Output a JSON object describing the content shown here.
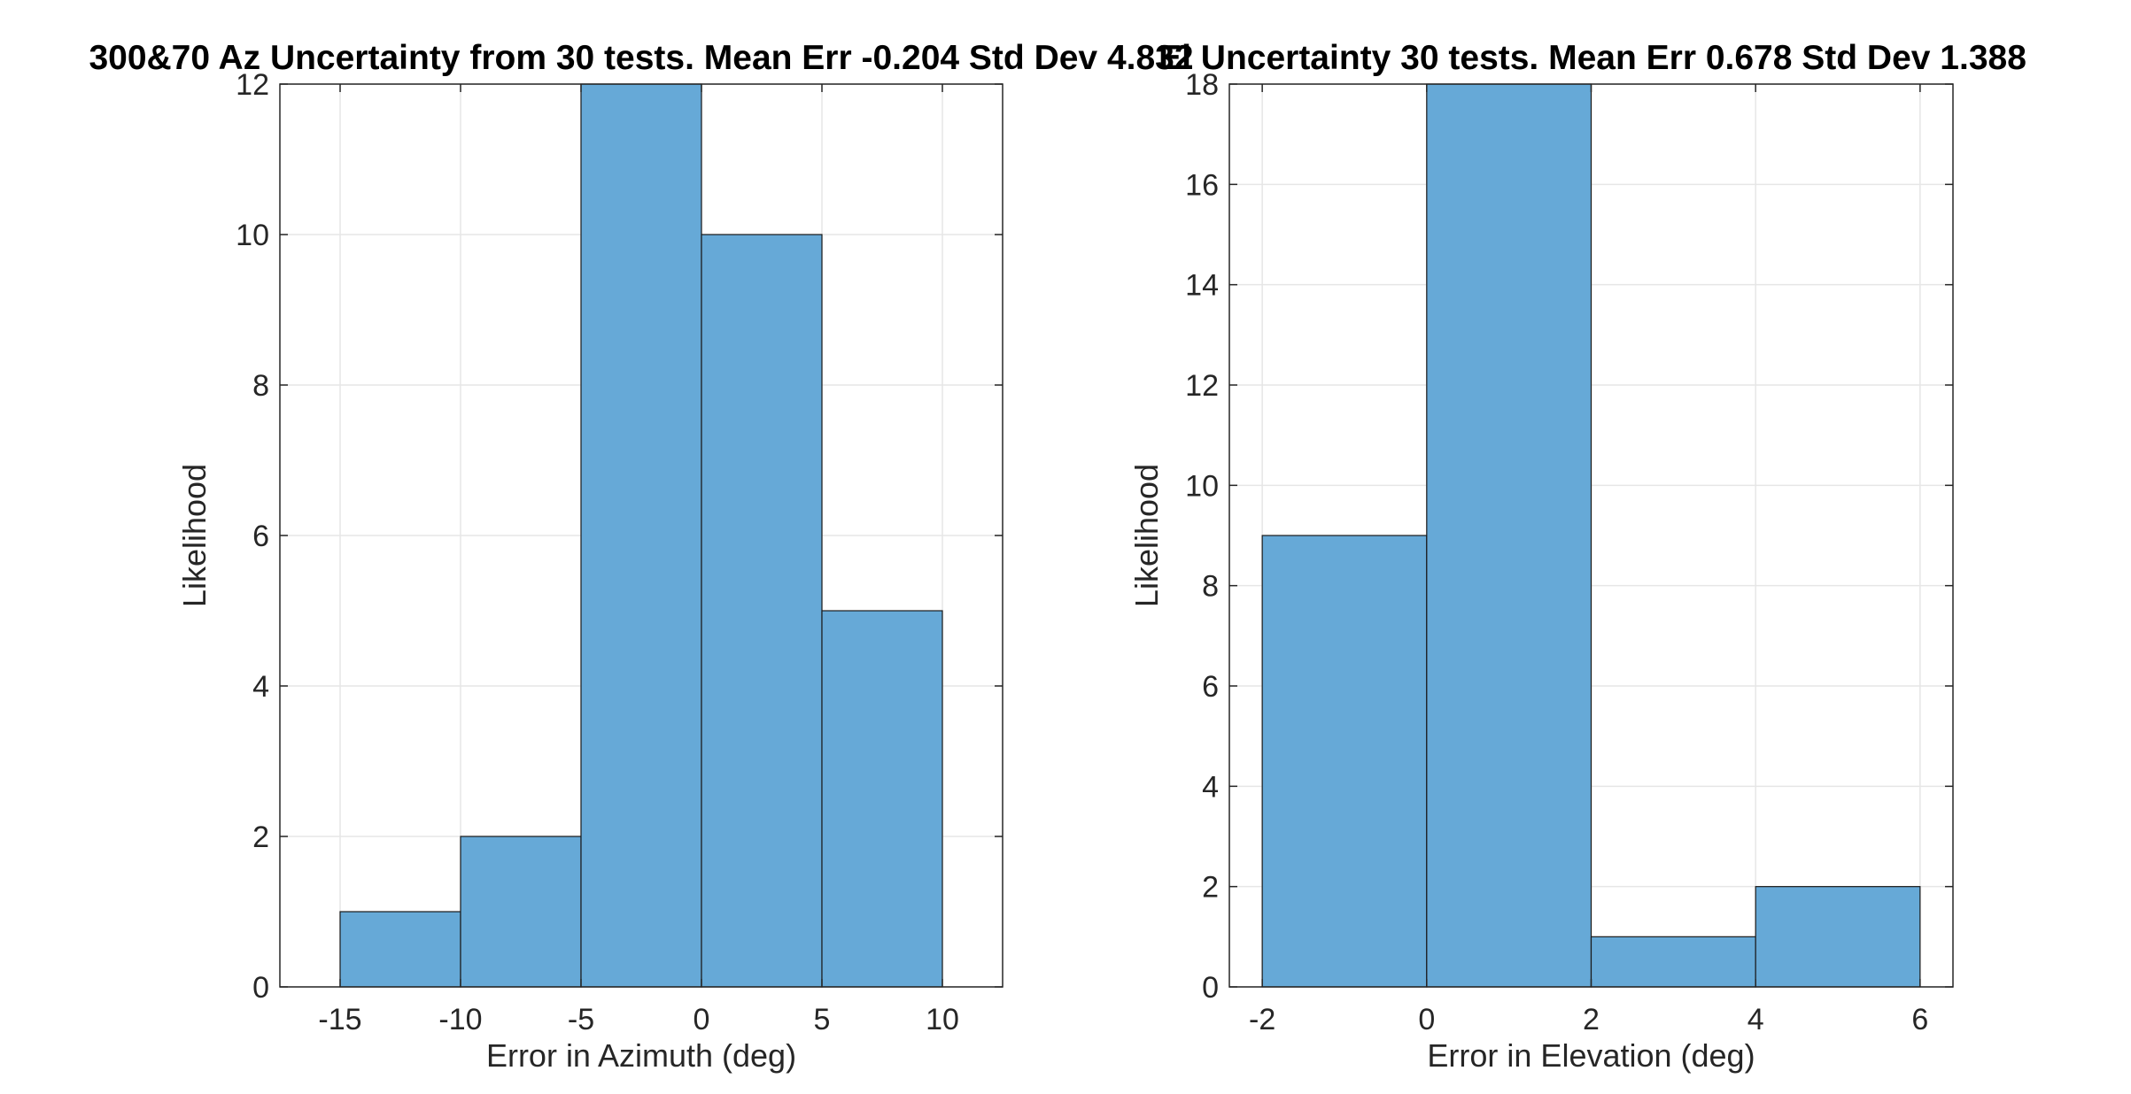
{
  "chart_data": [
    {
      "type": "bar",
      "title": "300&70 Az Uncertainty from 30 tests. Mean Err -0.204 Std Dev 4.832",
      "xlabel": "Error in Azimuth (deg)",
      "ylabel": "Likelihood",
      "xlim": [
        -17.5,
        12.5
      ],
      "ylim": [
        0,
        12
      ],
      "xticks": [
        -15,
        -10,
        -5,
        0,
        5,
        10
      ],
      "yticks": [
        0,
        2,
        4,
        6,
        8,
        10,
        12
      ],
      "grid": true,
      "bin_edges": [
        -15,
        -10,
        -5,
        0,
        5,
        10
      ],
      "values": [
        1,
        2,
        12,
        10,
        5
      ],
      "color": "#66a9d7"
    },
    {
      "type": "bar",
      "title": "El Uncertainty 30 tests. Mean Err 0.678 Std Dev 1.388",
      "xlabel": "Error in Elevation (deg)",
      "ylabel": "Likelihood",
      "xlim": [
        -2.4,
        6.4
      ],
      "ylim": [
        0,
        18
      ],
      "xticks": [
        -2,
        0,
        2,
        4,
        6
      ],
      "yticks": [
        0,
        2,
        4,
        6,
        8,
        10,
        12,
        14,
        16,
        18
      ],
      "grid": true,
      "bin_edges": [
        -2,
        0,
        2,
        4,
        6
      ],
      "values": [
        9,
        18,
        1,
        2
      ],
      "color": "#66a9d7"
    }
  ]
}
